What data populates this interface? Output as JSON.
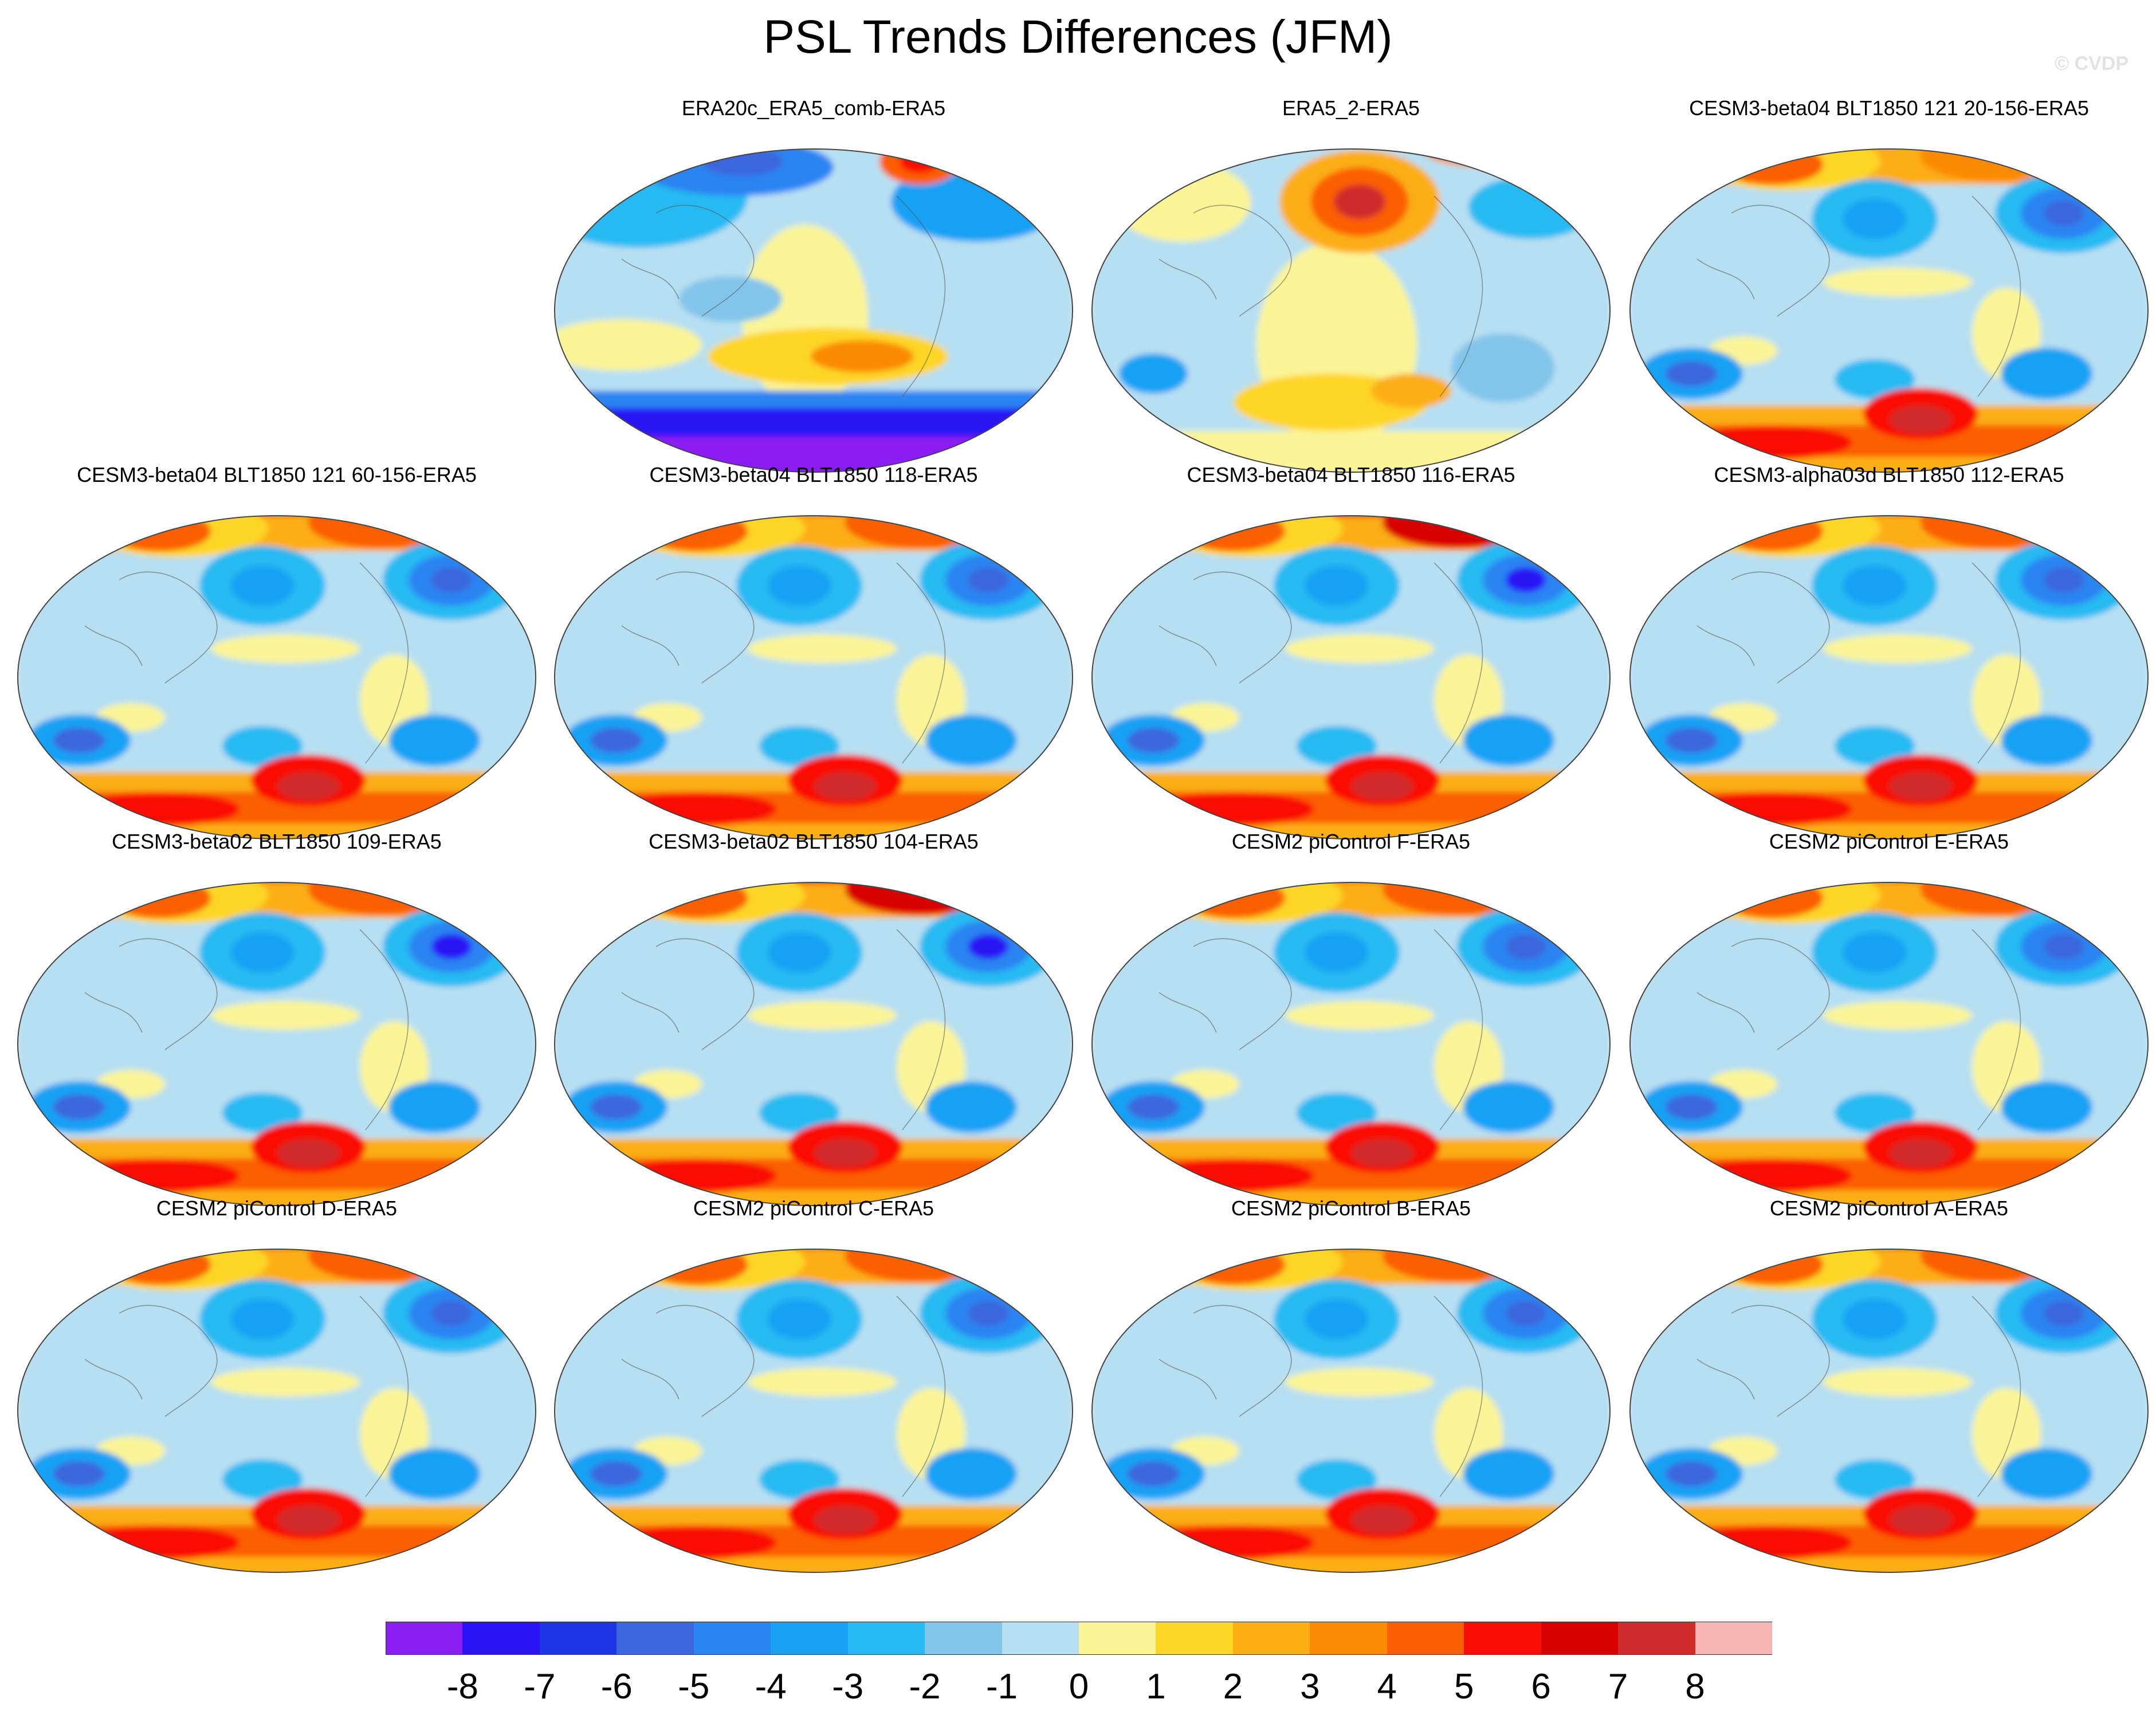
{
  "figure": {
    "title": "PSL Trends Differences (JFM)",
    "watermark": "© CVDP"
  },
  "chart_data": {
    "type": "map",
    "variable": "PSL trend difference",
    "season": "JFM",
    "projection": "Robinson",
    "panels": [
      {
        "title": "ERA20c_ERA5_comb-ERA5",
        "row": 1,
        "col": 2,
        "dominant": "strong negative over Southern Ocean, weak negative tropics, positive central Pacific"
      },
      {
        "title": "ERA5_2-ERA5",
        "row": 1,
        "col": 3,
        "dominant": "positive North Pacific high, weak positive Southern Hemisphere"
      },
      {
        "title": "CESM3-beta04 BLT1850 121 20-156-ERA5",
        "row": 1,
        "col": 4,
        "dominant": "positive Southern Ocean, negative mid-latitude Southern Hemisphere"
      },
      {
        "title": "CESM3-beta04 BLT1850 121 60-156-ERA5",
        "row": 2,
        "col": 1,
        "dominant": "positive Arctic and Southern Ocean, negative North Atlantic"
      },
      {
        "title": "CESM3-beta04 BLT1850 118-ERA5",
        "row": 2,
        "col": 2,
        "dominant": "positive Arctic and Southern Ocean, negative North Atlantic"
      },
      {
        "title": "CESM3-beta04 BLT1850 116-ERA5",
        "row": 2,
        "col": 3,
        "dominant": "strong positive Arctic, negative North Atlantic"
      },
      {
        "title": "CESM3-alpha03d BLT1850 112-ERA5",
        "row": 2,
        "col": 4,
        "dominant": "positive Arctic and Southern Ocean, negative North Atlantic"
      },
      {
        "title": "CESM3-beta02 BLT1850 109-ERA5",
        "row": 3,
        "col": 1,
        "dominant": "positive Southern Ocean, negative North Atlantic"
      },
      {
        "title": "CESM3-beta02 BLT1850 104-ERA5",
        "row": 3,
        "col": 2,
        "dominant": "strong positive Arctic, negative North Atlantic"
      },
      {
        "title": "CESM2 piControl F-ERA5",
        "row": 3,
        "col": 3,
        "dominant": "positive Arctic and Southern Ocean, negative North Atlantic"
      },
      {
        "title": "CESM2 piControl E-ERA5",
        "row": 3,
        "col": 4,
        "dominant": "positive Arctic and Southern Ocean, negative North Atlantic"
      },
      {
        "title": "CESM2 piControl D-ERA5",
        "row": 4,
        "col": 1,
        "dominant": "positive Arctic and Southern Ocean, negative North Atlantic"
      },
      {
        "title": "CESM2 piControl C-ERA5",
        "row": 4,
        "col": 2,
        "dominant": "positive Arctic and Southern Ocean, negative North Atlantic"
      },
      {
        "title": "CESM2 piControl B-ERA5",
        "row": 4,
        "col": 3,
        "dominant": "positive Arctic and Southern Ocean, negative North Atlantic"
      },
      {
        "title": "CESM2 piControl A-ERA5",
        "row": 4,
        "col": 4,
        "dominant": "positive Arctic and Southern Ocean, negative North Atlantic"
      }
    ],
    "colorbar": {
      "levels": [
        "-8",
        "-7",
        "-6",
        "-5",
        "-4",
        "-3",
        "-2",
        "-1",
        "0",
        "1",
        "2",
        "3",
        "4",
        "5",
        "6",
        "7",
        "8"
      ],
      "colors": [
        "#8b1ff2",
        "#2a14f5",
        "#1e35e6",
        "#3b66dd",
        "#2b84f2",
        "#17a1f4",
        "#28baf2",
        "#82c4ea",
        "#b7dff2",
        "#fbf598",
        "#fed626",
        "#fcae12",
        "#fb8a04",
        "#fb5f05",
        "#fa0d05",
        "#d90000",
        "#d12a2a",
        "#fbb4b4"
      ]
    }
  }
}
